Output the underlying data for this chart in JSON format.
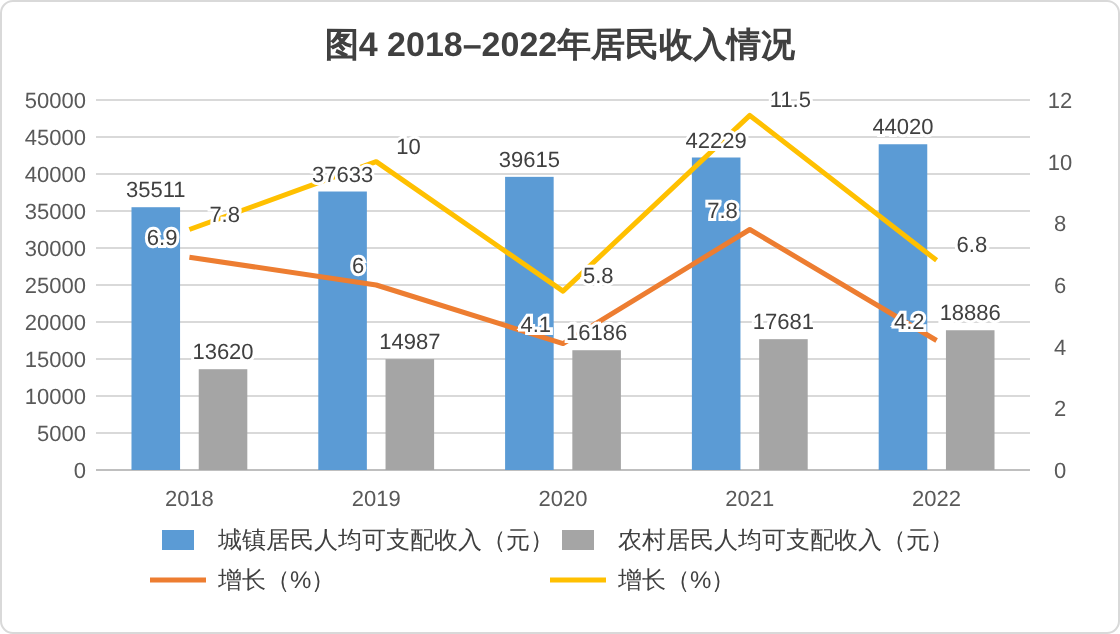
{
  "chart_data": {
    "type": "bar",
    "title": "图4  2018–2022年居民收入情况",
    "categories": [
      "2018",
      "2019",
      "2020",
      "2021",
      "2022"
    ],
    "series": [
      {
        "name": "城镇居民人均可支配收入（元）",
        "color": "#5b9bd5",
        "values": [
          35511,
          37633,
          39615,
          42229,
          44020
        ]
      },
      {
        "name": "农村居民人均可支配收入（元）",
        "color": "#a5a5a5",
        "values": [
          13620,
          14987,
          16186,
          17681,
          18886
        ]
      },
      {
        "name": "增长（%）",
        "type": "line",
        "axis": "y2",
        "color": "#ed7d31",
        "values": [
          6.9,
          6,
          4.1,
          7.8,
          4.2
        ]
      },
      {
        "name": "增长（%）",
        "type": "line",
        "axis": "y2",
        "color": "#ffc000",
        "values": [
          7.8,
          10,
          5.8,
          11.5,
          6.8
        ]
      }
    ],
    "ylim": [
      0,
      50000
    ],
    "yticks": [
      0,
      5000,
      10000,
      15000,
      20000,
      25000,
      30000,
      35000,
      40000,
      45000,
      50000
    ],
    "y2lim": [
      0,
      12
    ],
    "y2ticks": [
      0,
      2,
      4,
      6,
      8,
      10,
      12
    ],
    "grid": "y",
    "legend": "bottom",
    "data_labels": true,
    "marker": "none",
    "line_style": "solid"
  }
}
